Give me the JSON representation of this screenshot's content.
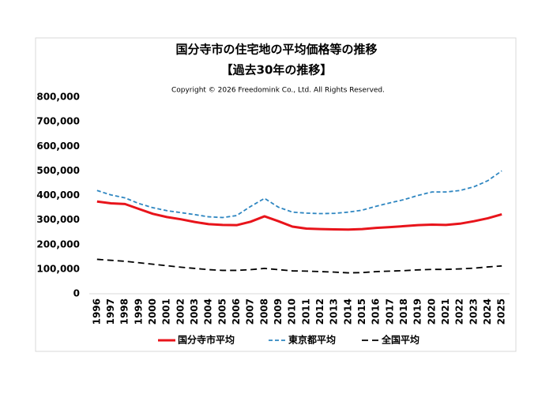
{
  "chart_data": {
    "type": "line",
    "title": "国分寺市の住宅地の平均価格等の推移",
    "subtitle": "【過去30年の推移】",
    "annotation": "Copyright © 2026 Freedomink Co., Ltd. All Rights Reserved.",
    "categories": [
      "1996",
      "1997",
      "1998",
      "1999",
      "2000",
      "2001",
      "2002",
      "2003",
      "2004",
      "2005",
      "2006",
      "2007",
      "2008",
      "2009",
      "2010",
      "2011",
      "2012",
      "2013",
      "2014",
      "2015",
      "2016",
      "2017",
      "2018",
      "2019",
      "2020",
      "2021",
      "2022",
      "2023",
      "2024",
      "2025"
    ],
    "series": [
      {
        "name": "国分寺市平均",
        "color": "#e8141b",
        "style": "solid",
        "values": [
          375000,
          368000,
          365000,
          345000,
          325000,
          312000,
          303000,
          292000,
          283000,
          280000,
          279000,
          293000,
          315000,
          295000,
          273000,
          265000,
          263000,
          262000,
          261000,
          263000,
          268000,
          271000,
          275000,
          279000,
          281000,
          280000,
          285000,
          295000,
          307000,
          323000
        ]
      },
      {
        "name": "東京都平均",
        "color": "#2e86c1",
        "style": "dashed",
        "values": [
          420000,
          402000,
          390000,
          367000,
          350000,
          338000,
          330000,
          322000,
          313000,
          310000,
          318000,
          355000,
          388000,
          352000,
          332000,
          328000,
          326000,
          327000,
          332000,
          340000,
          356000,
          370000,
          383000,
          400000,
          414000,
          414000,
          420000,
          435000,
          460000,
          500000
        ]
      },
      {
        "name": "全国平均",
        "color": "#000000",
        "style": "long-dashed",
        "values": [
          140000,
          136000,
          132000,
          126000,
          120000,
          114000,
          108000,
          103000,
          98000,
          95000,
          95000,
          98000,
          103000,
          98000,
          93000,
          92000,
          90000,
          88000,
          85000,
          86000,
          90000,
          92000,
          94000,
          97000,
          99000,
          99000,
          101000,
          104000,
          109000,
          113000
        ]
      }
    ],
    "ylim": [
      0,
      800000
    ],
    "yticks": [
      0,
      {
        "value": 100000,
        "label": "100,000"
      },
      {
        "value": 200000,
        "label": "200,000"
      },
      {
        "value": 300000,
        "label": "300,000"
      },
      {
        "value": 400000,
        "label": "400,000"
      },
      {
        "value": 500000,
        "label": "500,000"
      },
      {
        "value": 600000,
        "label": "600,000"
      },
      {
        "value": 700000,
        "label": "700,000"
      },
      {
        "value": 800000,
        "label": "800,000"
      }
    ],
    "grid": false,
    "legend": "bottom"
  }
}
